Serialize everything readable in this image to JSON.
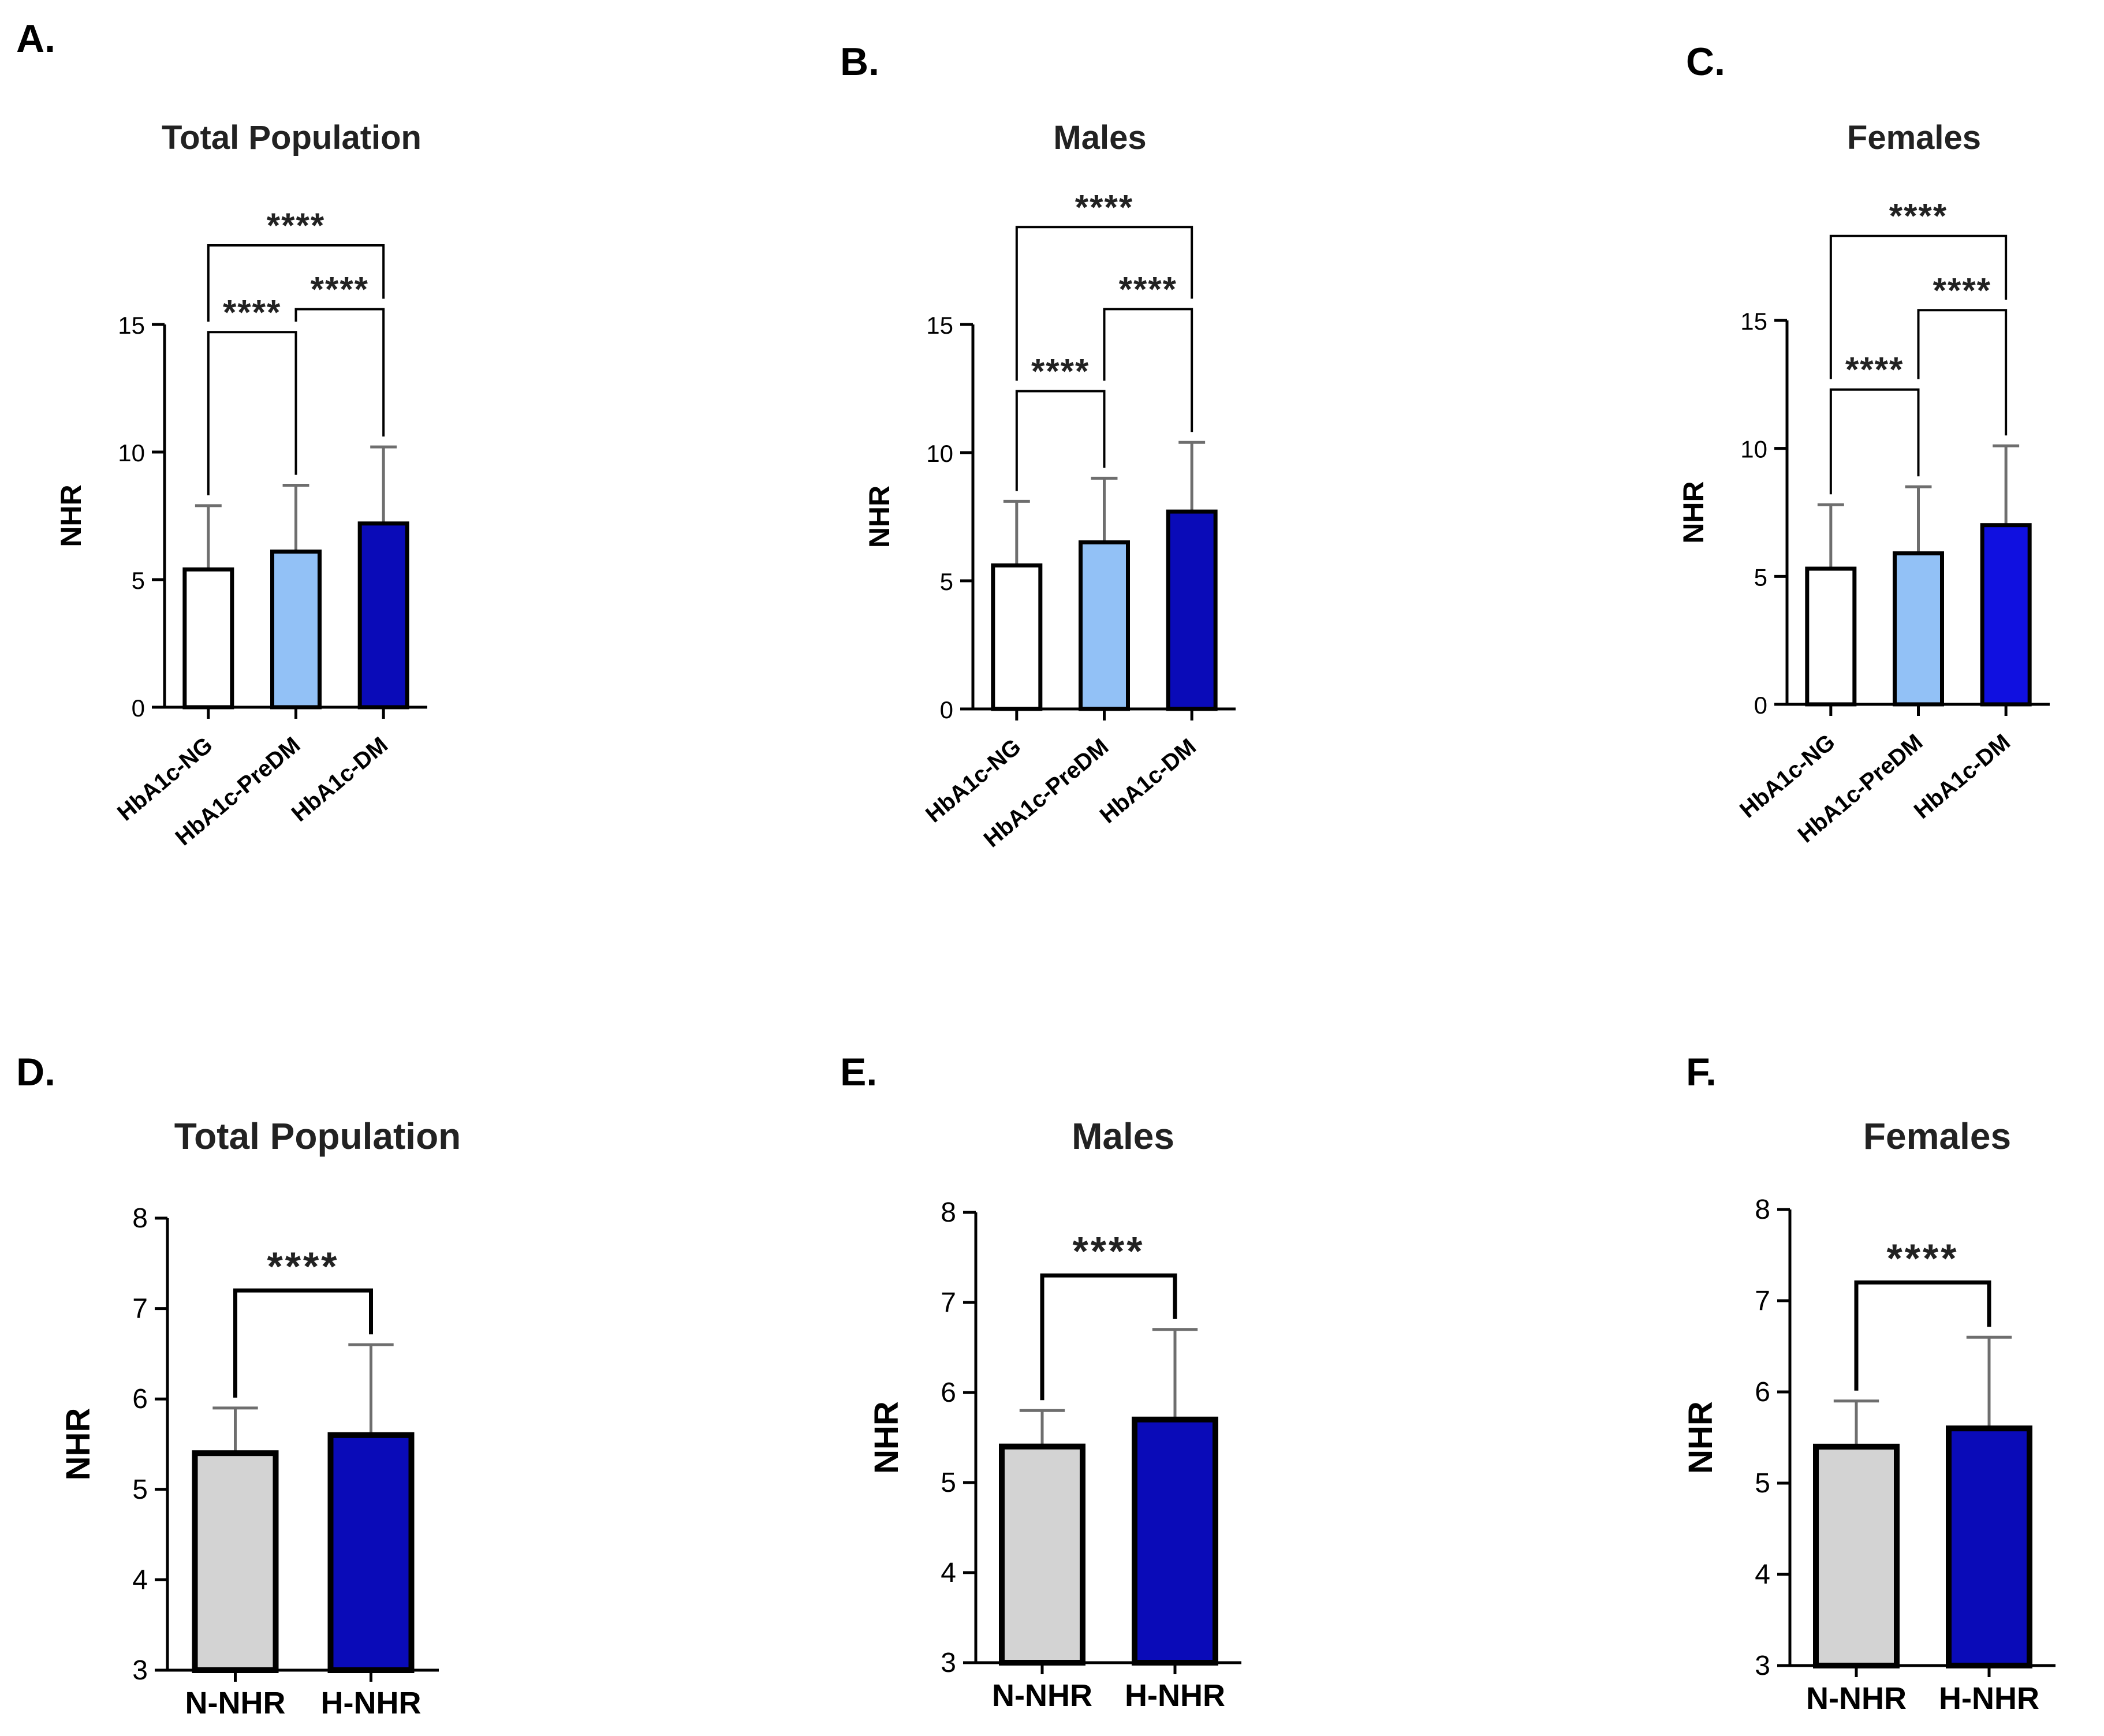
{
  "figure": {
    "colors": {
      "white": "#ffffff",
      "light_blue": "#92c1f6",
      "navy": "#0a0bb8",
      "blue": "#1010e0",
      "gray": "#d3d3d3",
      "axis": "#000000",
      "error_bar": "#6e6e6e"
    }
  },
  "chart_data": [
    {
      "type": "bar",
      "panel_label": "A.",
      "title": "Total Population",
      "ylabel": "NHR",
      "xlabel": "",
      "ylim": [
        0,
        15
      ],
      "yticks": [
        0,
        5,
        10,
        15
      ],
      "categories": [
        "HbA1c-NG",
        "HbA1c-PreDM",
        "HbA1c-DM"
      ],
      "values": [
        5.4,
        6.1,
        7.2
      ],
      "error_upper": [
        7.9,
        8.7,
        10.2
      ],
      "bar_colors": [
        "#ffffff",
        "#92c1f6",
        "#0a0bb8"
      ],
      "comparisons": [
        {
          "from": 0,
          "to": 1,
          "label": "****",
          "level": 14.7
        },
        {
          "from": 1,
          "to": 2,
          "label": "****",
          "level": 15.6
        },
        {
          "from": 0,
          "to": 2,
          "label": "****",
          "level": 18.1
        }
      ]
    },
    {
      "type": "bar",
      "panel_label": "B.",
      "title": "Males",
      "ylabel": "NHR",
      "xlabel": "",
      "ylim": [
        0,
        15
      ],
      "yticks": [
        0,
        5,
        10,
        15
      ],
      "categories": [
        "HbA1c-NG",
        "HbA1c-PreDM",
        "HbA1c-DM"
      ],
      "values": [
        5.6,
        6.5,
        7.7
      ],
      "error_upper": [
        8.1,
        9.0,
        10.4
      ],
      "bar_colors": [
        "#ffffff",
        "#92c1f6",
        "#0a0bb8"
      ],
      "comparisons": [
        {
          "from": 0,
          "to": 1,
          "label": "****",
          "level": 12.4
        },
        {
          "from": 1,
          "to": 2,
          "label": "****",
          "level": 15.6
        },
        {
          "from": 0,
          "to": 2,
          "label": "****",
          "level": 18.8
        }
      ]
    },
    {
      "type": "bar",
      "panel_label": "C.",
      "title": "Females",
      "ylabel": "NHR",
      "xlabel": "",
      "ylim": [
        0,
        15
      ],
      "yticks": [
        0,
        5,
        10,
        15
      ],
      "categories": [
        "HbA1c-NG",
        "HbA1c-PreDM",
        "HbA1c-DM"
      ],
      "values": [
        5.3,
        5.9,
        7.0
      ],
      "error_upper": [
        7.8,
        8.5,
        10.1
      ],
      "bar_colors": [
        "#ffffff",
        "#92c1f6",
        "#1010e0"
      ],
      "comparisons": [
        {
          "from": 0,
          "to": 1,
          "label": "****",
          "level": 12.3
        },
        {
          "from": 1,
          "to": 2,
          "label": "****",
          "level": 15.4
        },
        {
          "from": 0,
          "to": 2,
          "label": "****",
          "level": 18.3
        }
      ]
    },
    {
      "type": "bar",
      "panel_label": "D.",
      "title": "Total Population",
      "ylabel": "NHR",
      "xlabel": "",
      "ylim": [
        3,
        8
      ],
      "yticks": [
        3,
        4,
        5,
        6,
        7,
        8
      ],
      "categories": [
        "N-NHR",
        "H-NHR"
      ],
      "values": [
        5.4,
        5.6
      ],
      "error_upper": [
        5.9,
        6.6
      ],
      "bar_colors": [
        "#d3d3d3",
        "#0a0bb8"
      ],
      "comparisons": [
        {
          "from": 0,
          "to": 1,
          "label": "****",
          "level": 7.2
        }
      ]
    },
    {
      "type": "bar",
      "panel_label": "E.",
      "title": "Males",
      "ylabel": "NHR",
      "xlabel": "",
      "ylim": [
        3,
        8
      ],
      "yticks": [
        3,
        4,
        5,
        6,
        7,
        8
      ],
      "categories": [
        "N-NHR",
        "H-NHR"
      ],
      "values": [
        5.4,
        5.7
      ],
      "error_upper": [
        5.8,
        6.7
      ],
      "bar_colors": [
        "#d3d3d3",
        "#0a0bb8"
      ],
      "comparisons": [
        {
          "from": 0,
          "to": 1,
          "label": "****",
          "level": 7.3
        }
      ]
    },
    {
      "type": "bar",
      "panel_label": "F.",
      "title": "Females",
      "ylabel": "NHR",
      "xlabel": "",
      "ylim": [
        3,
        8
      ],
      "yticks": [
        3,
        4,
        5,
        6,
        7,
        8
      ],
      "categories": [
        "N-NHR",
        "H-NHR"
      ],
      "values": [
        5.4,
        5.6
      ],
      "error_upper": [
        5.9,
        6.6
      ],
      "bar_colors": [
        "#d3d3d3",
        "#0a0bb8"
      ],
      "comparisons": [
        {
          "from": 0,
          "to": 1,
          "label": "****",
          "level": 7.2
        }
      ]
    }
  ]
}
